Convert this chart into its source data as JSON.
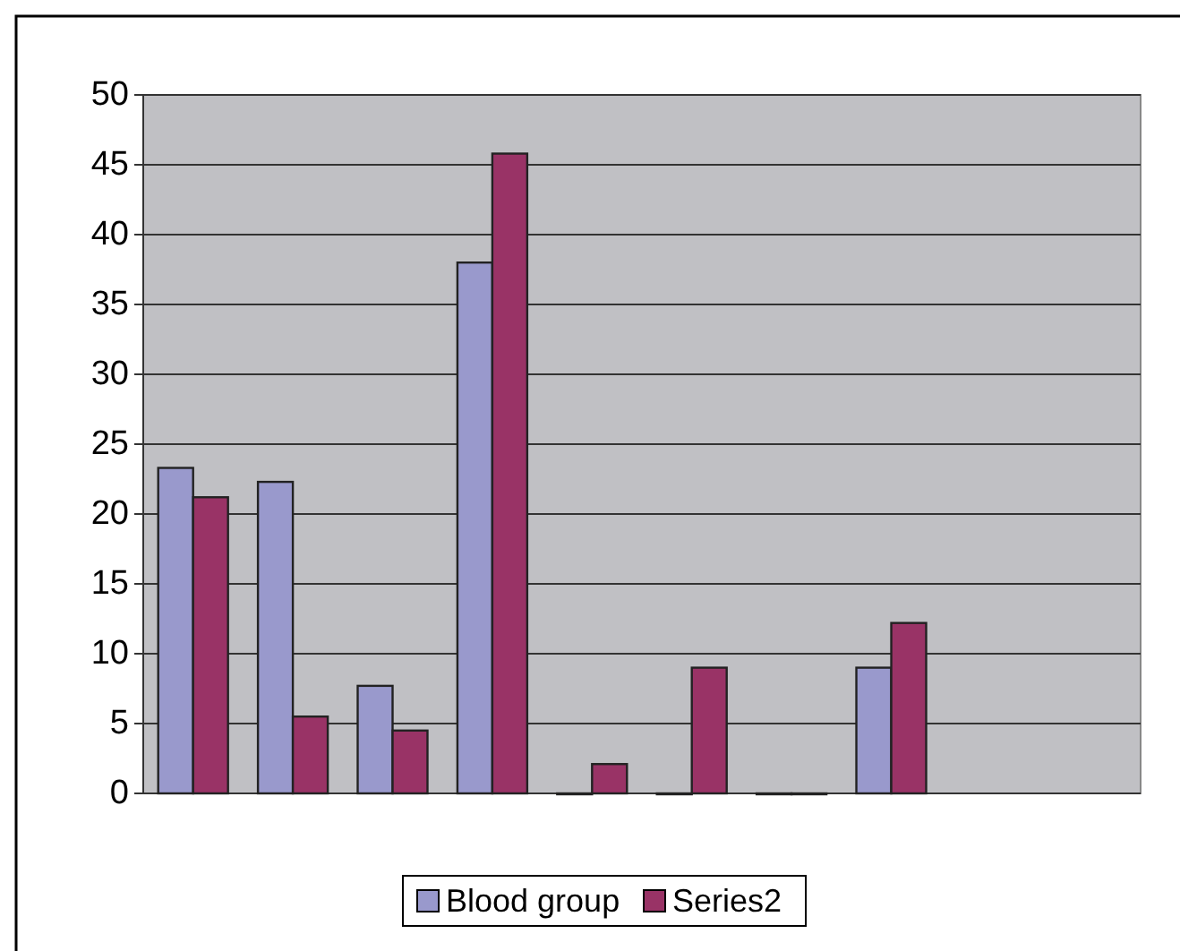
{
  "chart_data": {
    "type": "bar",
    "categories": [
      null,
      null,
      null,
      null,
      null,
      null,
      null,
      null,
      null,
      null
    ],
    "series": [
      {
        "name": "Blood group",
        "color": "#9999cc",
        "values": [
          23.3,
          22.3,
          7.7,
          38,
          0,
          0,
          0,
          9,
          null,
          null
        ]
      },
      {
        "name": "Series2",
        "color": "#993366",
        "values": [
          21.2,
          5.5,
          4.5,
          45.8,
          2.1,
          9,
          0,
          12.2,
          null,
          null
        ]
      }
    ],
    "ylim": [
      0,
      50
    ],
    "yticks": [
      0,
      5,
      10,
      15,
      20,
      25,
      30,
      35,
      40,
      45,
      50
    ],
    "grid": "y",
    "legend": "bottom"
  }
}
